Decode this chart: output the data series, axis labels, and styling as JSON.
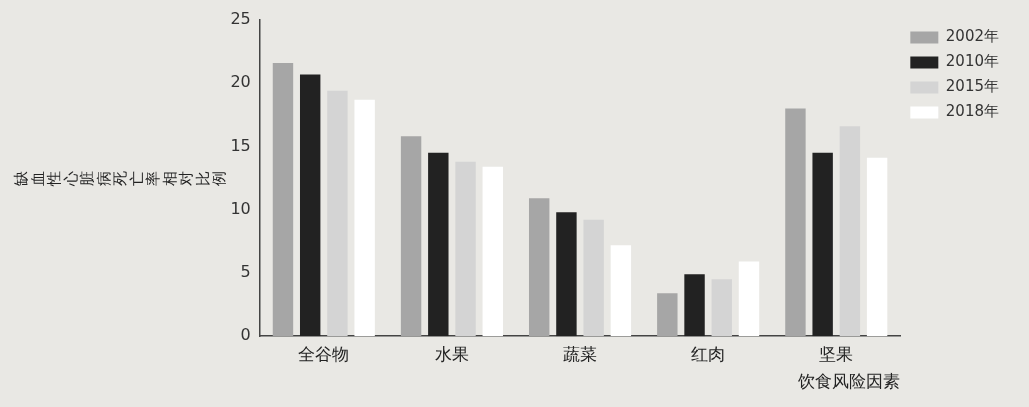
{
  "chart_data": {
    "type": "bar",
    "ylabel": "缺血性心脏病死亡率相对比例",
    "xlabel": "饮食风险因素",
    "categories": [
      "全谷物",
      "水果",
      "蔬菜",
      "红肉",
      "坚果"
    ],
    "series": [
      {
        "name": "2002年",
        "color": "#a6a6a6",
        "values": [
          21.6,
          15.8,
          10.9,
          3.4,
          18.0
        ]
      },
      {
        "name": "2010年",
        "color": "#222222",
        "values": [
          20.7,
          14.5,
          9.8,
          4.9,
          14.5
        ]
      },
      {
        "name": "2015年",
        "color": "#d4d4d4",
        "values": [
          19.4,
          13.8,
          9.2,
          4.5,
          16.6
        ]
      },
      {
        "name": "2018年",
        "color": "#ffffff",
        "values": [
          18.7,
          13.4,
          7.2,
          5.9,
          14.1
        ]
      }
    ],
    "ylim": [
      0,
      25
    ],
    "yticks": [
      0,
      5,
      10,
      15,
      20,
      25
    ],
    "grid": false,
    "legend": "top right"
  }
}
